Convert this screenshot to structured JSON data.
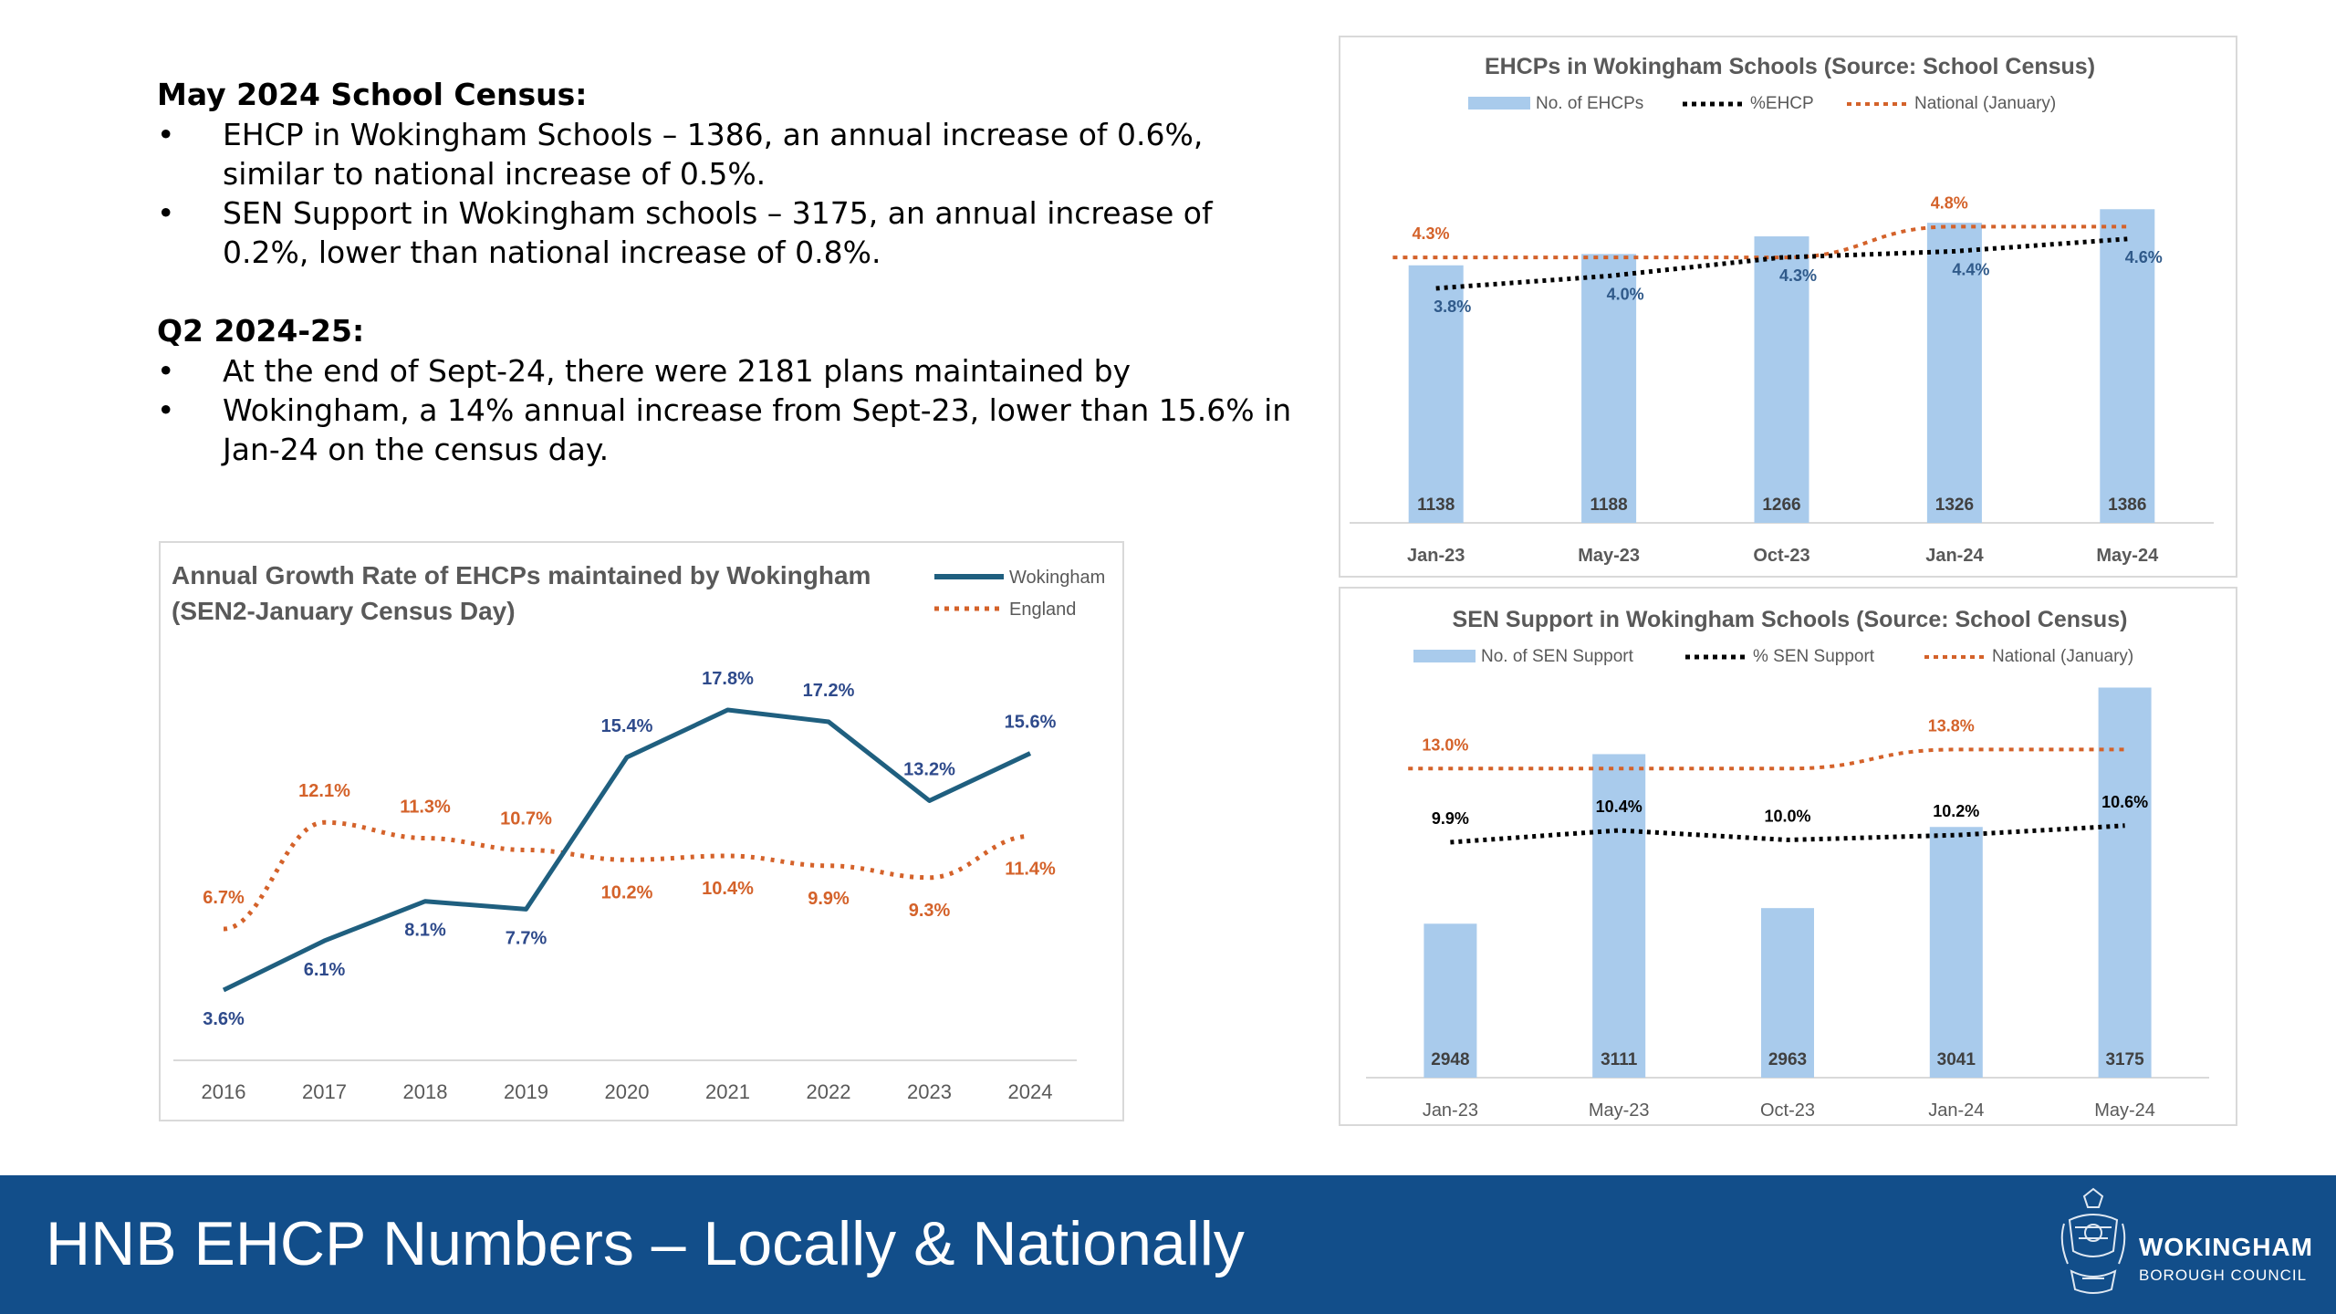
{
  "census_section": {
    "heading": "May 2024 School Census:",
    "bullets": [
      "EHCP in Wokingham Schools – 1386, an annual increase of 0.6%, similar to national increase of 0.5%.",
      "SEN Support in Wokingham schools – 3175, an annual increase of 0.2%, lower than national increase of 0.8%."
    ]
  },
  "q2_section": {
    "heading": "Q2 2024-25:",
    "bullets": [
      "At the end of Sept-24, there were 2181 plans maintained by",
      "Wokingham, a 14% annual increase from Sept-23, lower than 15.6% in Jan-24 on the census day."
    ]
  },
  "bullet_char": "•",
  "footer": {
    "title": "HNB EHCP Numbers – Locally & Nationally",
    "council_name": "WOKINGHAM",
    "council_sub": "BOROUGH COUNCIL"
  },
  "colors": {
    "bar": "#a9cbec",
    "orange": "#d4622a",
    "black_dots": "#000000",
    "wokingham_line": "#1f5f7f",
    "wok_label": "#2e4a8b",
    "footer_bg": "#124e8a"
  },
  "chart_data": [
    {
      "id": "ehcp",
      "type": "bar",
      "title": "EHCPs in Wokingham Schools (Source: School Census)",
      "legend": [
        "No. of EHCPs",
        "%EHCP",
        "National (January)"
      ],
      "categories": [
        "Jan-23",
        "May-23",
        "Oct-23",
        "Jan-24",
        "May-24"
      ],
      "bars": {
        "name": "No. of EHCPs",
        "values": [
          1138,
          1188,
          1266,
          1326,
          1386
        ]
      },
      "pct": {
        "name": "%EHCP",
        "values": [
          3.8,
          4.0,
          4.3,
          4.4,
          4.6
        ],
        "labels": [
          "3.8%",
          "4.0%",
          "4.3%",
          "4.4%",
          "4.6%"
        ]
      },
      "national": {
        "name": "National (January)",
        "values": [
          4.3,
          4.3,
          4.3,
          4.8,
          4.8
        ],
        "labels": [
          "4.3%",
          "4.8%"
        ]
      },
      "bar_range": [
        0,
        1500
      ],
      "pct_range": [
        0,
        5.5
      ]
    },
    {
      "id": "sen",
      "type": "bar",
      "title": "SEN Support  in Wokingham Schools (Source: School Census)",
      "legend": [
        "No. of SEN Support",
        "% SEN Support",
        "National (January)"
      ],
      "categories": [
        "Jan-23",
        "May-23",
        "Oct-23",
        "Jan-24",
        "May-24"
      ],
      "bars": {
        "name": "No. of SEN Support",
        "values": [
          2948,
          3111,
          2963,
          3041,
          3175
        ]
      },
      "pct": {
        "name": "% SEN Support",
        "values": [
          9.9,
          10.4,
          10.0,
          10.2,
          10.6
        ],
        "labels": [
          "9.9%",
          "10.4%",
          "10.0%",
          "10.2%",
          "10.6%"
        ]
      },
      "national": {
        "name": "National (January)",
        "values": [
          13.0,
          13.0,
          13.0,
          13.8,
          13.8
        ],
        "labels": [
          "13.0%",
          "13.8%"
        ]
      },
      "bar_range": [
        2800,
        3200
      ],
      "pct_range": [
        0,
        17.5
      ]
    },
    {
      "id": "growth",
      "type": "line",
      "title": [
        "Annual Growth Rate of EHCPs maintained by Wokingham",
        "(SEN2-January Census Day)"
      ],
      "legend": [
        "Wokingham",
        "England"
      ],
      "categories": [
        "2016",
        "2017",
        "2018",
        "2019",
        "2020",
        "2021",
        "2022",
        "2023",
        "2024"
      ],
      "series": [
        {
          "name": "Wokingham",
          "values": [
            3.6,
            6.1,
            8.1,
            7.7,
            15.4,
            17.8,
            17.2,
            13.2,
            15.6
          ],
          "labels": [
            "3.6%",
            "6.1%",
            "8.1%",
            "7.7%",
            "15.4%",
            "17.8%",
            "17.2%",
            "13.2%",
            "15.6%"
          ]
        },
        {
          "name": "England",
          "values": [
            6.7,
            12.1,
            11.3,
            10.7,
            10.2,
            10.4,
            9.9,
            9.3,
            11.4
          ],
          "labels": [
            "6.7%",
            "12.1%",
            "11.3%",
            "10.7%",
            "10.2%",
            "10.4%",
            "9.9%",
            "9.3%",
            "11.4%"
          ]
        }
      ],
      "ylim": [
        0,
        20
      ]
    }
  ]
}
